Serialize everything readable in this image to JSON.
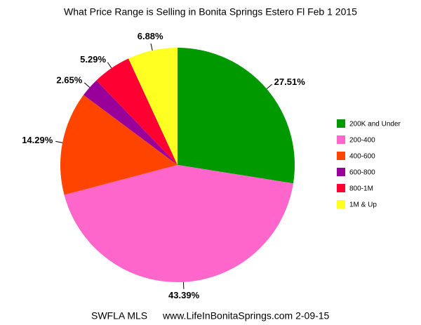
{
  "chart_data": {
    "type": "pie",
    "title": "What Price Range is Selling in Bonita Springs Estero Fl Feb 1 2015",
    "categories": [
      "200K and Under",
      "200-400",
      "400-600",
      "600-800",
      "800-1M",
      "1M & Up"
    ],
    "values": [
      27.51,
      43.39,
      14.29,
      2.65,
      5.29,
      6.88
    ],
    "value_labels": [
      "27.51%",
      "43.39%",
      "14.29%",
      "2.65%",
      "5.29%",
      "6.88%"
    ],
    "colors": [
      "#009900",
      "#ff66cc",
      "#ff4400",
      "#990099",
      "#ff0033",
      "#ffff22"
    ],
    "legend": "right",
    "notes": [
      "SWFLA MLS",
      "www.LifeInBonitaSprings.com 2-09-15"
    ]
  }
}
